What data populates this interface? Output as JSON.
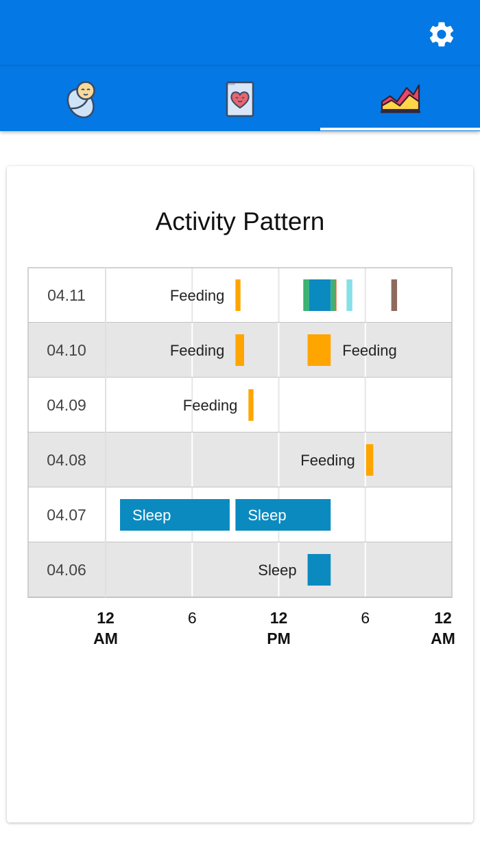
{
  "app": {
    "accent_color": "#0478e4",
    "settings_icon": "gear-icon"
  },
  "tabs": [
    {
      "name": "baby",
      "icon": "swaddled-baby-icon",
      "selected": false
    },
    {
      "name": "journal",
      "icon": "heart-card-icon",
      "selected": false
    },
    {
      "name": "stats",
      "icon": "area-chart-icon",
      "selected": true
    }
  ],
  "chart_data": {
    "type": "timeline",
    "title": "Activity Pattern",
    "x_axis_ticks": [
      {
        "hour": 0,
        "line1": "12",
        "line2": "AM",
        "bold": true
      },
      {
        "hour": 6,
        "line1": "6",
        "line2": "",
        "bold": false
      },
      {
        "hour": 12,
        "line1": "12",
        "line2": "PM",
        "bold": true
      },
      {
        "hour": 18,
        "line1": "6",
        "line2": "",
        "bold": false
      },
      {
        "hour": 24,
        "line1": "12",
        "line2": "AM",
        "bold": true
      }
    ],
    "xlim": [
      0,
      24
    ],
    "colors": {
      "Feeding": "#ffa500",
      "Sleep": "#0b8ac0",
      "Diaper": "#3cb371",
      "Bath": "#87dfe8",
      "Other": "#8e6b5c",
      "Tummy": "#e0643c"
    },
    "rows": [
      {
        "date": "04.11",
        "events": [
          {
            "type": "Feeding",
            "start": 9.0,
            "end": 9.35,
            "label": "Feeding",
            "label_pos": "left"
          },
          {
            "type": "Diaper",
            "start": 13.7,
            "end": 14.1,
            "label": ""
          },
          {
            "type": "Sleep",
            "start": 14.1,
            "end": 15.6,
            "label": ""
          },
          {
            "type": "Diaper",
            "start": 15.6,
            "end": 15.9,
            "label": ""
          },
          {
            "type": "Tummy",
            "start": 15.9,
            "end": 16.0,
            "label": ""
          },
          {
            "type": "Bath",
            "start": 16.7,
            "end": 17.1,
            "label": ""
          },
          {
            "type": "Other",
            "start": 19.8,
            "end": 20.2,
            "label": ""
          }
        ]
      },
      {
        "date": "04.10",
        "events": [
          {
            "type": "Feeding",
            "start": 9.0,
            "end": 9.6,
            "label": "Feeding",
            "label_pos": "left"
          },
          {
            "type": "Feeding",
            "start": 14.0,
            "end": 15.6,
            "label": "Feeding",
            "label_pos": "right"
          }
        ]
      },
      {
        "date": "04.09",
        "events": [
          {
            "type": "Feeding",
            "start": 9.9,
            "end": 10.25,
            "label": "Feeding",
            "label_pos": "left"
          }
        ]
      },
      {
        "date": "04.08",
        "events": [
          {
            "type": "Feeding",
            "start": 18.05,
            "end": 18.55,
            "label": "Feeding",
            "label_pos": "left"
          }
        ]
      },
      {
        "date": "04.07",
        "events": [
          {
            "type": "Sleep",
            "start": 1.0,
            "end": 8.6,
            "label": "Sleep",
            "label_pos": "inside"
          },
          {
            "type": "Sleep",
            "start": 9.0,
            "end": 15.6,
            "label": "Sleep",
            "label_pos": "inside"
          }
        ]
      },
      {
        "date": "04.06",
        "events": [
          {
            "type": "Sleep",
            "start": 14.0,
            "end": 15.6,
            "label": "Sleep",
            "label_pos": "left"
          }
        ]
      }
    ]
  }
}
